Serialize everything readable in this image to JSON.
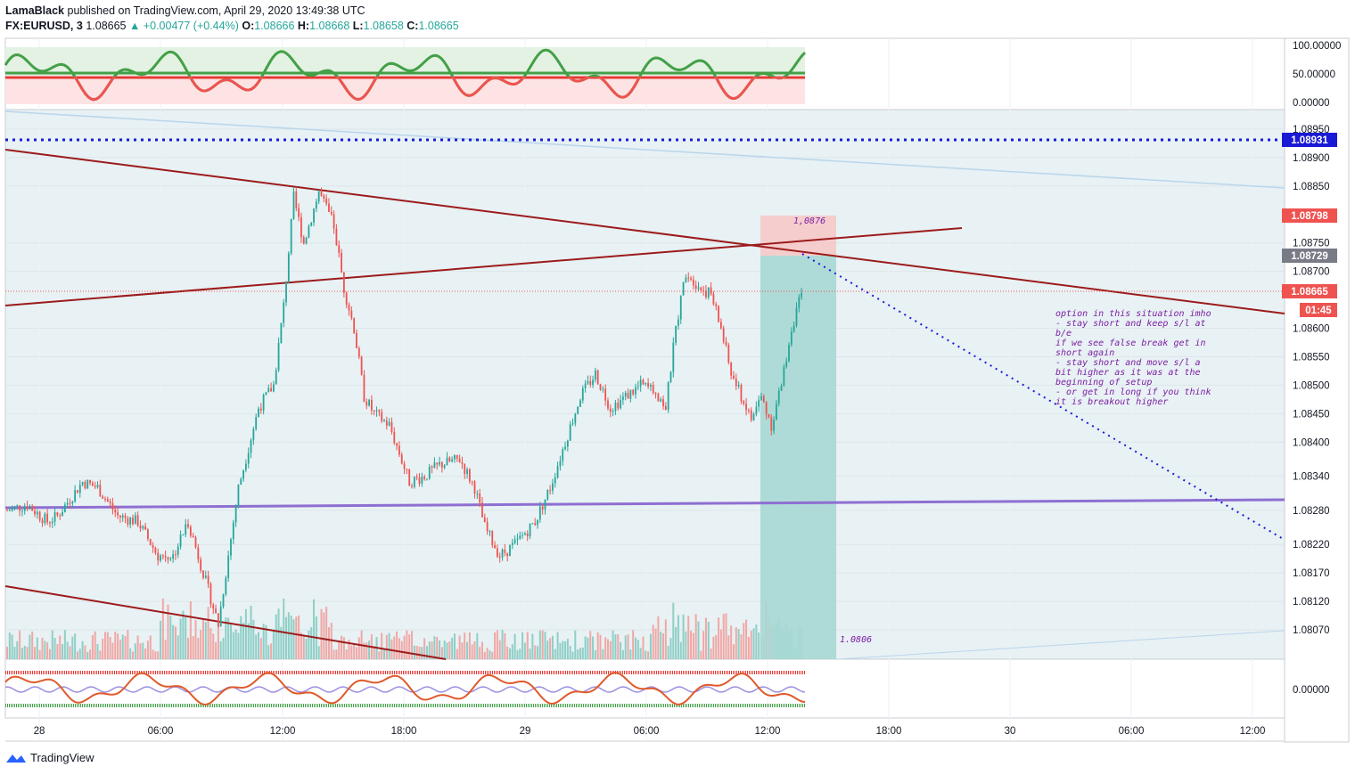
{
  "header": {
    "author": "LamaBlack",
    "published_text": "published on TradingView.com, April 29, 2020 13:49:38 UTC",
    "symbol": "FX:EURUSD, 3",
    "last": "1.08665",
    "change": "▲ +0.00477 (+0.44%)",
    "o_label": "O:",
    "o_value": "1.08666",
    "h_label": "H:",
    "h_value": "1.08668",
    "l_label": "L:",
    "l_value": "1.08658",
    "c_label": "C:",
    "c_value": "1.08665"
  },
  "branding": {
    "logo_text": "TradingView"
  },
  "colors": {
    "up": "#26a69a",
    "down": "#ef5350",
    "trendline": "#9c1b1b",
    "purple_line": "#7e57c2",
    "blue_dotted": "#1a1ad6",
    "chart_bg": "#e8f1f4"
  },
  "chart_data": {
    "type": "candlestick",
    "symbol": "FX:EURUSD",
    "interval": "3",
    "x_ticks": [
      "28",
      "06:00",
      "12:00",
      "18:00",
      "29",
      "06:00",
      "12:00",
      "18:00",
      "30",
      "06:00",
      "12:00"
    ],
    "y_ticks": [
      "1.08950",
      "1.08900",
      "1.08850",
      "1.08750",
      "1.08700",
      "1.08600",
      "1.08550",
      "1.08500",
      "1.08450",
      "1.08400",
      "1.08340",
      "1.08280",
      "1.08220",
      "1.08170",
      "1.08120",
      "1.08070"
    ],
    "ylim": [
      1.0803,
      1.0898
    ],
    "close_path": [
      [
        0,
        1.0828
      ],
      [
        8,
        1.0829
      ],
      [
        16,
        1.0826
      ],
      [
        20,
        1.0827
      ],
      [
        30,
        1.0833
      ],
      [
        36,
        1.0832
      ],
      [
        44,
        1.0827
      ],
      [
        52,
        1.0826
      ],
      [
        60,
        1.082
      ],
      [
        66,
        1.082
      ],
      [
        72,
        1.0826
      ],
      [
        78,
        1.0817
      ],
      [
        84,
        1.0808
      ],
      [
        92,
        1.0832
      ],
      [
        100,
        1.0846
      ],
      [
        106,
        1.085
      ],
      [
        110,
        1.0864
      ],
      [
        114,
        1.0883
      ],
      [
        118,
        1.0875
      ],
      [
        124,
        1.0884
      ],
      [
        130,
        1.0878
      ],
      [
        134,
        1.0867
      ],
      [
        138,
        1.086
      ],
      [
        142,
        1.0848
      ],
      [
        146,
        1.0845
      ],
      [
        152,
        1.0843
      ],
      [
        156,
        1.0838
      ],
      [
        160,
        1.0833
      ],
      [
        166,
        1.0834
      ],
      [
        172,
        1.0836
      ],
      [
        180,
        1.0837
      ],
      [
        186,
        1.0832
      ],
      [
        190,
        1.0825
      ],
      [
        196,
        1.082
      ],
      [
        202,
        1.0822
      ],
      [
        210,
        1.0826
      ],
      [
        216,
        1.0832
      ],
      [
        222,
        1.084
      ],
      [
        228,
        1.0848
      ],
      [
        234,
        1.0852
      ],
      [
        240,
        1.0846
      ],
      [
        246,
        1.0848
      ],
      [
        252,
        1.085
      ],
      [
        258,
        1.0849
      ],
      [
        262,
        1.0846
      ],
      [
        266,
        1.086
      ],
      [
        270,
        1.087
      ],
      [
        276,
        1.0867
      ],
      [
        280,
        1.0866
      ],
      [
        284,
        1.086
      ],
      [
        288,
        1.0852
      ],
      [
        292,
        1.0848
      ],
      [
        296,
        1.0844
      ],
      [
        300,
        1.0848
      ],
      [
        304,
        1.0843
      ],
      [
        308,
        1.085
      ],
      [
        312,
        1.086
      ],
      [
        316,
        1.0866
      ]
    ],
    "right_axis_labels": [
      {
        "value": "1.08931",
        "color": "#1a1ad6"
      },
      {
        "value": "1.08798",
        "color": "#ef5350"
      },
      {
        "value": "1.08729",
        "color": "#787b86"
      },
      {
        "value": "1.08665",
        "color": "#ef5350"
      },
      {
        "value": "01:45",
        "color": "#ef5350"
      }
    ],
    "annotations": {
      "target_label": "1,0876",
      "stop_label": "1.0806",
      "note_lines": [
        "option in this situation imho",
        "- stay short and keep s/l at",
        "b/e",
        "if we see false break get in",
        "short again",
        "- stay short and move s/l a",
        "bit higher as it was at the",
        "beginning of setup",
        "- or get in long if you think",
        "it is breakout higher"
      ]
    },
    "levels": {
      "blue_dotted": 1.08931,
      "purple_horizontal": 1.0829,
      "last_price": 1.08665
    },
    "upper_indicator": {
      "y_ticks": [
        "100.00000",
        "50.00000",
        "0.00000"
      ]
    },
    "lower_indicator": {
      "y_ticks": [
        "0.00000"
      ]
    }
  }
}
